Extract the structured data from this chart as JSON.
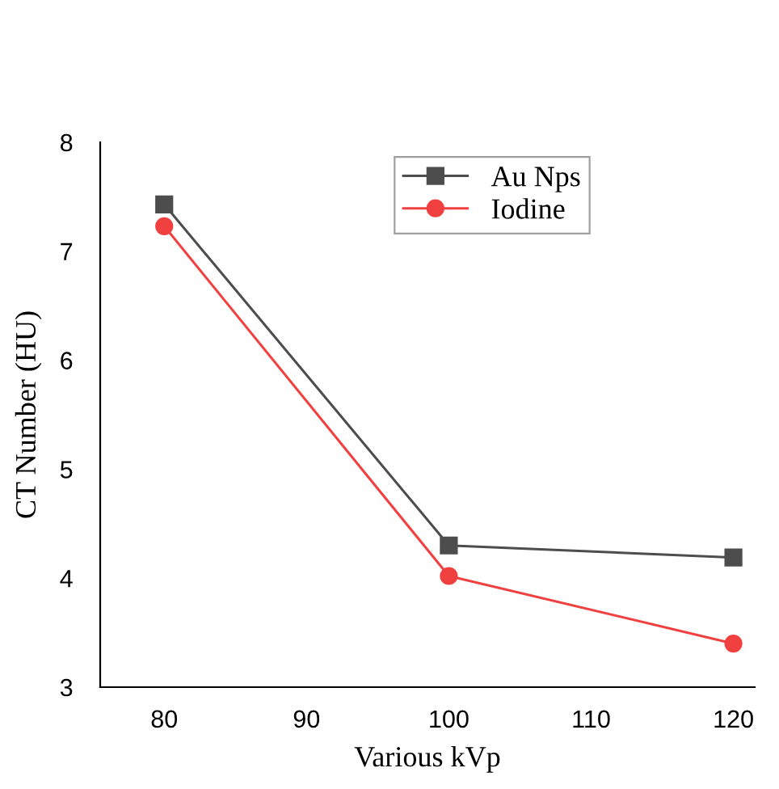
{
  "chart_data": {
    "type": "line",
    "xlabel": "Various kVp",
    "ylabel": "CT Number (HU)",
    "x": [
      80,
      100,
      120
    ],
    "series": [
      {
        "name": "Au Nps",
        "color": "#4d4d4d",
        "marker": "square",
        "values": [
          7.43,
          4.3,
          4.19
        ]
      },
      {
        "name": "Iodine",
        "color": "#f04040",
        "marker": "circle",
        "values": [
          7.23,
          4.02,
          3.4
        ]
      }
    ],
    "xlim": [
      75.5,
      121.5
    ],
    "ylim": [
      3,
      8
    ],
    "xticks": [
      80,
      90,
      100,
      110,
      120
    ],
    "yticks": [
      3,
      4,
      5,
      6,
      7,
      8
    ],
    "grid": false,
    "legend": "top right",
    "line_style": "solid"
  }
}
